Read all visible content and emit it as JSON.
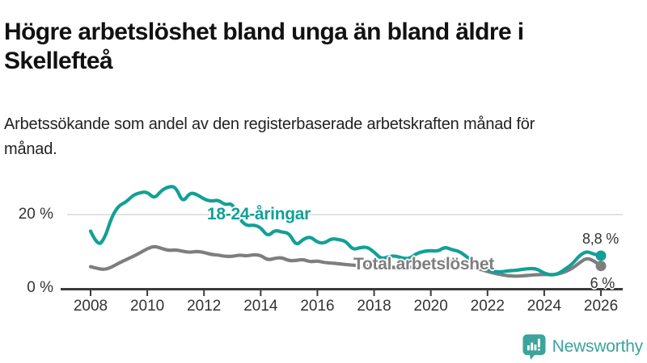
{
  "chart_data": {
    "type": "line",
    "title": "Högre arbetslöshet bland unga än bland äldre i Skellefteå",
    "subtitle": "Arbetssökande som andel av den registerbaserade arbetskraften månad för månad.",
    "unit": "%",
    "grid": "single horizontal gridline at 20 %",
    "legend_position": "inline labels on lines",
    "xlim": [
      2007.8,
      2026.7
    ],
    "ylim": [
      0,
      30
    ],
    "x_ticks": [
      2008,
      2010,
      2012,
      2014,
      2016,
      2018,
      2020,
      2022,
      2024,
      2026
    ],
    "y_ticks": [
      {
        "value": 20,
        "label": "20 %"
      },
      {
        "value": 0,
        "label": "0 %"
      }
    ],
    "x_start": 2008,
    "x_step": 0.25,
    "series": [
      {
        "name": "18-24-åringar",
        "color": "#12a096",
        "end_label": "8,8 %",
        "end_value": 8.8,
        "values": [
          15.5,
          11.3,
          13.5,
          19.5,
          22.5,
          23.4,
          25.3,
          26.0,
          26.2,
          24.3,
          26.6,
          27.6,
          27.6,
          23.2,
          26.0,
          25.5,
          24.2,
          23.6,
          24.0,
          22.6,
          23.1,
          18.8,
          16.9,
          17.2,
          16.5,
          14.0,
          15.8,
          15.2,
          15.0,
          11.5,
          13.3,
          14.0,
          12.4,
          12.2,
          13.5,
          13.2,
          12.8,
          10.4,
          11.0,
          11.2,
          9.8,
          7.9,
          8.5,
          8.8,
          8.1,
          8.0,
          9.4,
          10.0,
          10.2,
          10.0,
          11.2,
          10.4,
          10.0,
          8.6,
          7.2,
          5.9,
          5.1,
          4.4,
          4.4,
          4.7,
          4.8,
          5.1,
          5.3,
          5.2,
          4.0,
          3.5,
          3.9,
          5.2,
          6.6,
          8.9,
          10.0,
          9.2,
          8.8
        ]
      },
      {
        "name": "Total arbetslöshet",
        "color": "#7e7e7e",
        "end_label": "6 %",
        "end_value": 6.0,
        "values": [
          5.8,
          5.3,
          5.0,
          5.7,
          6.8,
          7.7,
          8.6,
          9.6,
          10.7,
          11.4,
          10.8,
          10.2,
          10.4,
          10.0,
          9.7,
          10.0,
          9.7,
          9.1,
          9.0,
          8.6,
          8.6,
          9.0,
          8.7,
          9.1,
          8.9,
          7.6,
          8.1,
          8.3,
          7.4,
          7.5,
          7.8,
          7.1,
          7.4,
          6.9,
          6.8,
          6.6,
          6.4,
          6.2,
          6.1,
          6.0,
          5.9,
          5.7,
          5.6,
          5.6,
          5.6,
          5.7,
          5.8,
          6.0,
          6.3,
          7.1,
          7.5,
          7.2,
          6.8,
          6.3,
          5.7,
          5.1,
          4.5,
          4.0,
          3.6,
          3.3,
          3.2,
          3.3,
          3.5,
          3.6,
          3.7,
          3.6,
          3.8,
          4.4,
          5.4,
          6.9,
          8.2,
          7.4,
          6.0
        ]
      }
    ],
    "colors": {
      "axis": "#3a3a3a",
      "gridline": "#e2e2e2",
      "tick_label": "#333333",
      "end_label": "#333333"
    }
  },
  "branding": {
    "logo_text": "Newsworthy",
    "logo_color": "#3ba49d"
  }
}
